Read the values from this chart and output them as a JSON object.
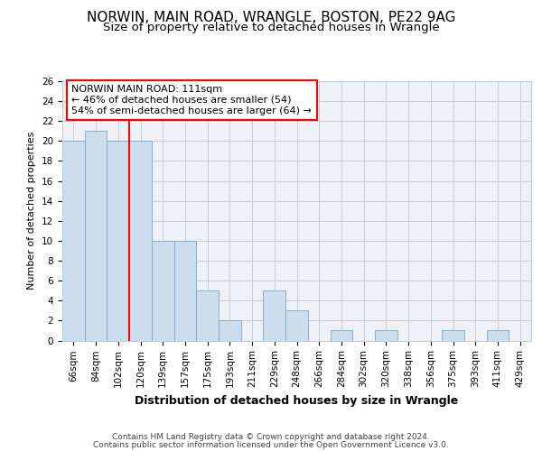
{
  "title1": "NORWIN, MAIN ROAD, WRANGLE, BOSTON, PE22 9AG",
  "title2": "Size of property relative to detached houses in Wrangle",
  "xlabel": "Distribution of detached houses by size in Wrangle",
  "ylabel": "Number of detached properties",
  "footer1": "Contains HM Land Registry data © Crown copyright and database right 2024.",
  "footer2": "Contains public sector information licensed under the Open Government Licence v3.0.",
  "annotation_line1": "NORWIN MAIN ROAD: 111sqm",
  "annotation_line2": "← 46% of detached houses are smaller (54)",
  "annotation_line3": "54% of semi-detached houses are larger (64) →",
  "bar_labels": [
    "66sqm",
    "84sqm",
    "102sqm",
    "120sqm",
    "139sqm",
    "157sqm",
    "175sqm",
    "193sqm",
    "211sqm",
    "229sqm",
    "248sqm",
    "266sqm",
    "284sqm",
    "302sqm",
    "320sqm",
    "338sqm",
    "356sqm",
    "375sqm",
    "393sqm",
    "411sqm",
    "429sqm"
  ],
  "bar_values": [
    20,
    21,
    20,
    20,
    10,
    10,
    5,
    2,
    0,
    5,
    3,
    0,
    1,
    0,
    1,
    0,
    0,
    1,
    0,
    1,
    0
  ],
  "bar_color": "#ccdded",
  "bar_edge_color": "#7aaac8",
  "red_line_index": 2,
  "ylim": [
    0,
    26
  ],
  "yticks": [
    0,
    2,
    4,
    6,
    8,
    10,
    12,
    14,
    16,
    18,
    20,
    22,
    24,
    26
  ],
  "bg_color": "#eef2f7",
  "grid_color": "#c5cdd8",
  "title1_fontsize": 11,
  "title2_fontsize": 9.5,
  "ylabel_fontsize": 8,
  "xlabel_fontsize": 9,
  "tick_fontsize": 7.5,
  "footer_fontsize": 6.5,
  "ann_fontsize": 8
}
